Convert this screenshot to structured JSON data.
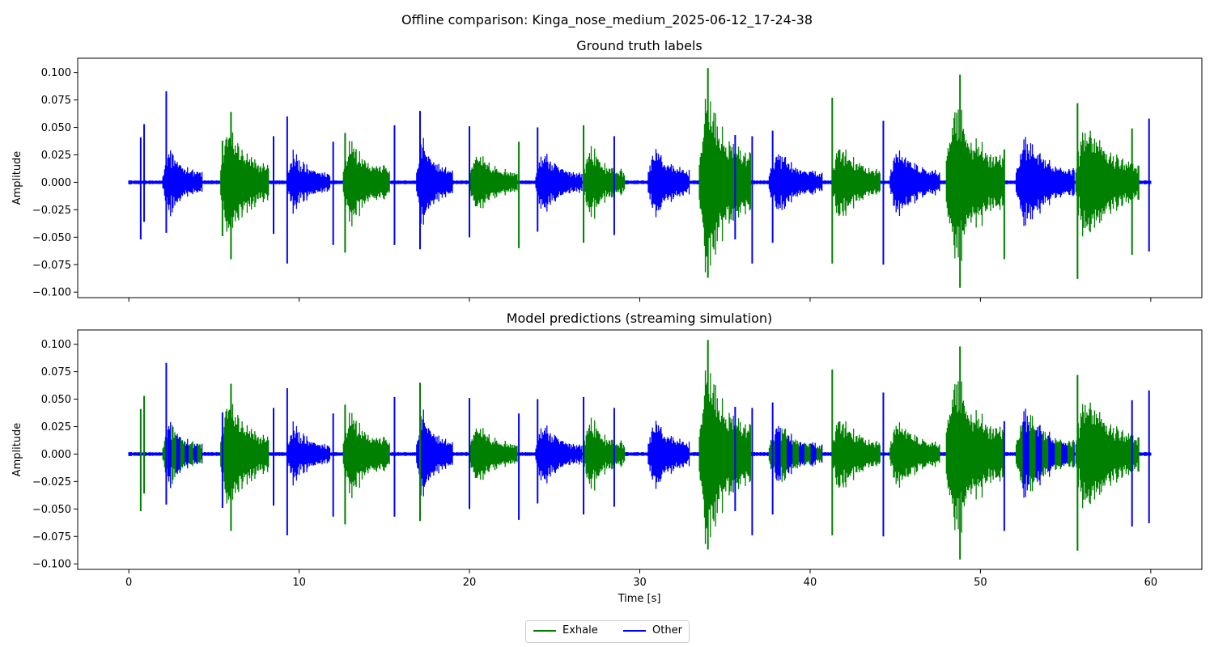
{
  "figure": {
    "suptitle": "Offline comparison: Kinga_nose_medium_2025-06-12_17-24-38"
  },
  "colors": {
    "exhale": "#008000",
    "other": "#0000ff",
    "axis": "#000000",
    "legend_border": "#cccccc"
  },
  "legend": {
    "placement": "bottom-center",
    "items": [
      {
        "label": "Exhale",
        "color": "#008000"
      },
      {
        "label": "Other",
        "color": "#0000ff"
      }
    ]
  },
  "chart_data": [
    {
      "type": "line",
      "title": "Ground truth labels",
      "xlabel": "",
      "ylabel": "Amplitude",
      "xlim": [
        -3,
        63
      ],
      "ylim": [
        -0.105,
        0.113
      ],
      "xticks": [
        0,
        10,
        20,
        30,
        40,
        50,
        60
      ],
      "xtick_labels_shown": false,
      "yticks": [
        -0.1,
        -0.075,
        -0.05,
        -0.025,
        0.0,
        0.025,
        0.05,
        0.075,
        0.1
      ],
      "ytick_labels": [
        "−0.100",
        "−0.075",
        "−0.050",
        "−0.025",
        "0.000",
        "0.025",
        "0.050",
        "0.075",
        "0.100"
      ],
      "grid": false,
      "breaths": [
        {
          "start": 2.0,
          "end": 4.3,
          "peak": 0.038,
          "label": "Other"
        },
        {
          "start": 5.4,
          "end": 8.2,
          "peak": 0.063,
          "label": "Exhale"
        },
        {
          "start": 9.3,
          "end": 11.8,
          "peak": 0.033,
          "label": "Other"
        },
        {
          "start": 12.6,
          "end": 15.3,
          "peak": 0.052,
          "label": "Exhale"
        },
        {
          "start": 16.9,
          "end": 19.0,
          "peak": 0.045,
          "label": "Other"
        },
        {
          "start": 20.0,
          "end": 22.8,
          "peak": 0.038,
          "label": "Exhale"
        },
        {
          "start": 23.9,
          "end": 26.6,
          "peak": 0.033,
          "label": "Other"
        },
        {
          "start": 26.7,
          "end": 29.1,
          "peak": 0.041,
          "label": "Exhale"
        },
        {
          "start": 30.5,
          "end": 32.9,
          "peak": 0.042,
          "label": "Other"
        },
        {
          "start": 33.5,
          "end": 36.5,
          "peak": 0.104,
          "label": "Exhale"
        },
        {
          "start": 37.6,
          "end": 40.7,
          "peak": 0.035,
          "label": "Other"
        },
        {
          "start": 41.3,
          "end": 44.1,
          "peak": 0.045,
          "label": "Exhale"
        },
        {
          "start": 44.7,
          "end": 47.6,
          "peak": 0.039,
          "label": "Other"
        },
        {
          "start": 48.0,
          "end": 51.4,
          "peak": 0.091,
          "label": "Exhale"
        },
        {
          "start": 52.1,
          "end": 55.5,
          "peak": 0.049,
          "label": "Other"
        },
        {
          "start": 55.6,
          "end": 59.3,
          "peak": 0.069,
          "label": "Exhale"
        }
      ],
      "spikes": [
        {
          "t": 0.7,
          "up": 0.041,
          "down": -0.052,
          "label": "Other"
        },
        {
          "t": 0.9,
          "up": 0.053,
          "down": -0.036,
          "label": "Other"
        },
        {
          "t": 2.2,
          "up": 0.083,
          "down": -0.046,
          "label": "Other"
        },
        {
          "t": 5.5,
          "up": 0.038,
          "down": -0.049,
          "label": "Exhale"
        },
        {
          "t": 6.0,
          "up": 0.064,
          "down": -0.07,
          "label": "Exhale"
        },
        {
          "t": 8.5,
          "up": 0.042,
          "down": -0.047,
          "label": "Other"
        },
        {
          "t": 9.3,
          "up": 0.06,
          "down": -0.074,
          "label": "Other"
        },
        {
          "t": 12.0,
          "up": 0.037,
          "down": -0.057,
          "label": "Other"
        },
        {
          "t": 12.7,
          "up": 0.045,
          "down": -0.064,
          "label": "Exhale"
        },
        {
          "t": 15.6,
          "up": 0.052,
          "down": -0.057,
          "label": "Other"
        },
        {
          "t": 17.1,
          "up": 0.065,
          "down": -0.061,
          "label": "Other"
        },
        {
          "t": 20.0,
          "up": 0.051,
          "down": -0.05,
          "label": "Other"
        },
        {
          "t": 22.9,
          "up": 0.037,
          "down": -0.06,
          "label": "Exhale"
        },
        {
          "t": 24.0,
          "up": 0.05,
          "down": -0.045,
          "label": "Other"
        },
        {
          "t": 26.7,
          "up": 0.052,
          "down": -0.055,
          "label": "Exhale"
        },
        {
          "t": 28.5,
          "up": 0.042,
          "down": -0.048,
          "label": "Other"
        },
        {
          "t": 34.0,
          "up": 0.104,
          "down": -0.087,
          "label": "Exhale"
        },
        {
          "t": 35.6,
          "up": 0.043,
          "down": -0.052,
          "label": "Other"
        },
        {
          "t": 36.6,
          "up": 0.042,
          "down": -0.074,
          "label": "Other"
        },
        {
          "t": 37.8,
          "up": 0.047,
          "down": -0.055,
          "label": "Other"
        },
        {
          "t": 41.3,
          "up": 0.077,
          "down": -0.074,
          "label": "Exhale"
        },
        {
          "t": 44.3,
          "up": 0.056,
          "down": -0.075,
          "label": "Other"
        },
        {
          "t": 48.8,
          "up": 0.098,
          "down": -0.096,
          "label": "Exhale"
        },
        {
          "t": 51.4,
          "up": 0.03,
          "down": -0.07,
          "label": "Exhale"
        },
        {
          "t": 55.7,
          "up": 0.072,
          "down": -0.088,
          "label": "Exhale"
        },
        {
          "t": 58.9,
          "up": 0.049,
          "down": -0.066,
          "label": "Exhale"
        },
        {
          "t": 59.9,
          "up": 0.058,
          "down": -0.063,
          "label": "Other"
        }
      ]
    },
    {
      "type": "line",
      "title": "Model predictions (streaming simulation)",
      "xlabel": "Time [s]",
      "ylabel": "Amplitude",
      "xlim": [
        -3,
        63
      ],
      "ylim": [
        -0.105,
        0.113
      ],
      "xticks": [
        0,
        10,
        20,
        30,
        40,
        50,
        60
      ],
      "xtick_labels": [
        "0",
        "10",
        "20",
        "30",
        "40",
        "50",
        "60"
      ],
      "yticks": [
        -0.1,
        -0.075,
        -0.05,
        -0.025,
        0.0,
        0.025,
        0.05,
        0.075,
        0.1
      ],
      "ytick_labels": [
        "−0.100",
        "−0.075",
        "−0.050",
        "−0.025",
        "0.000",
        "0.025",
        "0.050",
        "0.075",
        "0.100"
      ],
      "grid": false,
      "breaths": [
        {
          "start": 2.0,
          "end": 4.3,
          "peak": 0.038,
          "label": "Mixed"
        },
        {
          "start": 5.4,
          "end": 8.2,
          "peak": 0.063,
          "label": "Exhale"
        },
        {
          "start": 9.3,
          "end": 11.8,
          "peak": 0.033,
          "label": "Other"
        },
        {
          "start": 12.6,
          "end": 15.3,
          "peak": 0.052,
          "label": "Exhale"
        },
        {
          "start": 16.9,
          "end": 19.0,
          "peak": 0.045,
          "label": "Other"
        },
        {
          "start": 20.0,
          "end": 22.8,
          "peak": 0.038,
          "label": "Exhale"
        },
        {
          "start": 23.9,
          "end": 26.6,
          "peak": 0.033,
          "label": "Other"
        },
        {
          "start": 26.7,
          "end": 29.1,
          "peak": 0.041,
          "label": "Exhale"
        },
        {
          "start": 30.5,
          "end": 32.9,
          "peak": 0.042,
          "label": "Other"
        },
        {
          "start": 33.5,
          "end": 36.5,
          "peak": 0.104,
          "label": "Exhale"
        },
        {
          "start": 37.6,
          "end": 40.7,
          "peak": 0.035,
          "label": "Mixed"
        },
        {
          "start": 41.3,
          "end": 44.1,
          "peak": 0.045,
          "label": "Exhale"
        },
        {
          "start": 44.7,
          "end": 47.6,
          "peak": 0.039,
          "label": "Exhale"
        },
        {
          "start": 48.0,
          "end": 51.4,
          "peak": 0.091,
          "label": "Exhale"
        },
        {
          "start": 52.1,
          "end": 55.5,
          "peak": 0.049,
          "label": "Mixed"
        },
        {
          "start": 55.6,
          "end": 59.3,
          "peak": 0.069,
          "label": "Exhale"
        }
      ],
      "spikes": [
        {
          "t": 0.7,
          "up": 0.041,
          "down": -0.052,
          "label": "Exhale"
        },
        {
          "t": 0.9,
          "up": 0.053,
          "down": -0.036,
          "label": "Exhale"
        },
        {
          "t": 2.2,
          "up": 0.083,
          "down": -0.046,
          "label": "Other"
        },
        {
          "t": 5.5,
          "up": 0.038,
          "down": -0.049,
          "label": "Other"
        },
        {
          "t": 6.0,
          "up": 0.064,
          "down": -0.07,
          "label": "Exhale"
        },
        {
          "t": 8.5,
          "up": 0.042,
          "down": -0.047,
          "label": "Other"
        },
        {
          "t": 9.3,
          "up": 0.06,
          "down": -0.074,
          "label": "Other"
        },
        {
          "t": 12.0,
          "up": 0.037,
          "down": -0.057,
          "label": "Other"
        },
        {
          "t": 12.7,
          "up": 0.045,
          "down": -0.064,
          "label": "Exhale"
        },
        {
          "t": 15.6,
          "up": 0.052,
          "down": -0.057,
          "label": "Other"
        },
        {
          "t": 17.1,
          "up": 0.065,
          "down": -0.061,
          "label": "Exhale"
        },
        {
          "t": 20.0,
          "up": 0.051,
          "down": -0.05,
          "label": "Other"
        },
        {
          "t": 22.9,
          "up": 0.037,
          "down": -0.06,
          "label": "Other"
        },
        {
          "t": 24.0,
          "up": 0.05,
          "down": -0.045,
          "label": "Other"
        },
        {
          "t": 26.7,
          "up": 0.052,
          "down": -0.055,
          "label": "Other"
        },
        {
          "t": 28.5,
          "up": 0.042,
          "down": -0.048,
          "label": "Other"
        },
        {
          "t": 34.0,
          "up": 0.104,
          "down": -0.087,
          "label": "Exhale"
        },
        {
          "t": 35.6,
          "up": 0.043,
          "down": -0.052,
          "label": "Other"
        },
        {
          "t": 36.6,
          "up": 0.042,
          "down": -0.074,
          "label": "Other"
        },
        {
          "t": 37.8,
          "up": 0.047,
          "down": -0.055,
          "label": "Other"
        },
        {
          "t": 41.3,
          "up": 0.077,
          "down": -0.074,
          "label": "Exhale"
        },
        {
          "t": 44.3,
          "up": 0.056,
          "down": -0.075,
          "label": "Other"
        },
        {
          "t": 48.8,
          "up": 0.098,
          "down": -0.096,
          "label": "Exhale"
        },
        {
          "t": 51.4,
          "up": 0.03,
          "down": -0.07,
          "label": "Other"
        },
        {
          "t": 55.7,
          "up": 0.072,
          "down": -0.088,
          "label": "Exhale"
        },
        {
          "t": 58.9,
          "up": 0.049,
          "down": -0.066,
          "label": "Other"
        },
        {
          "t": 59.9,
          "up": 0.058,
          "down": -0.063,
          "label": "Other"
        }
      ]
    }
  ]
}
